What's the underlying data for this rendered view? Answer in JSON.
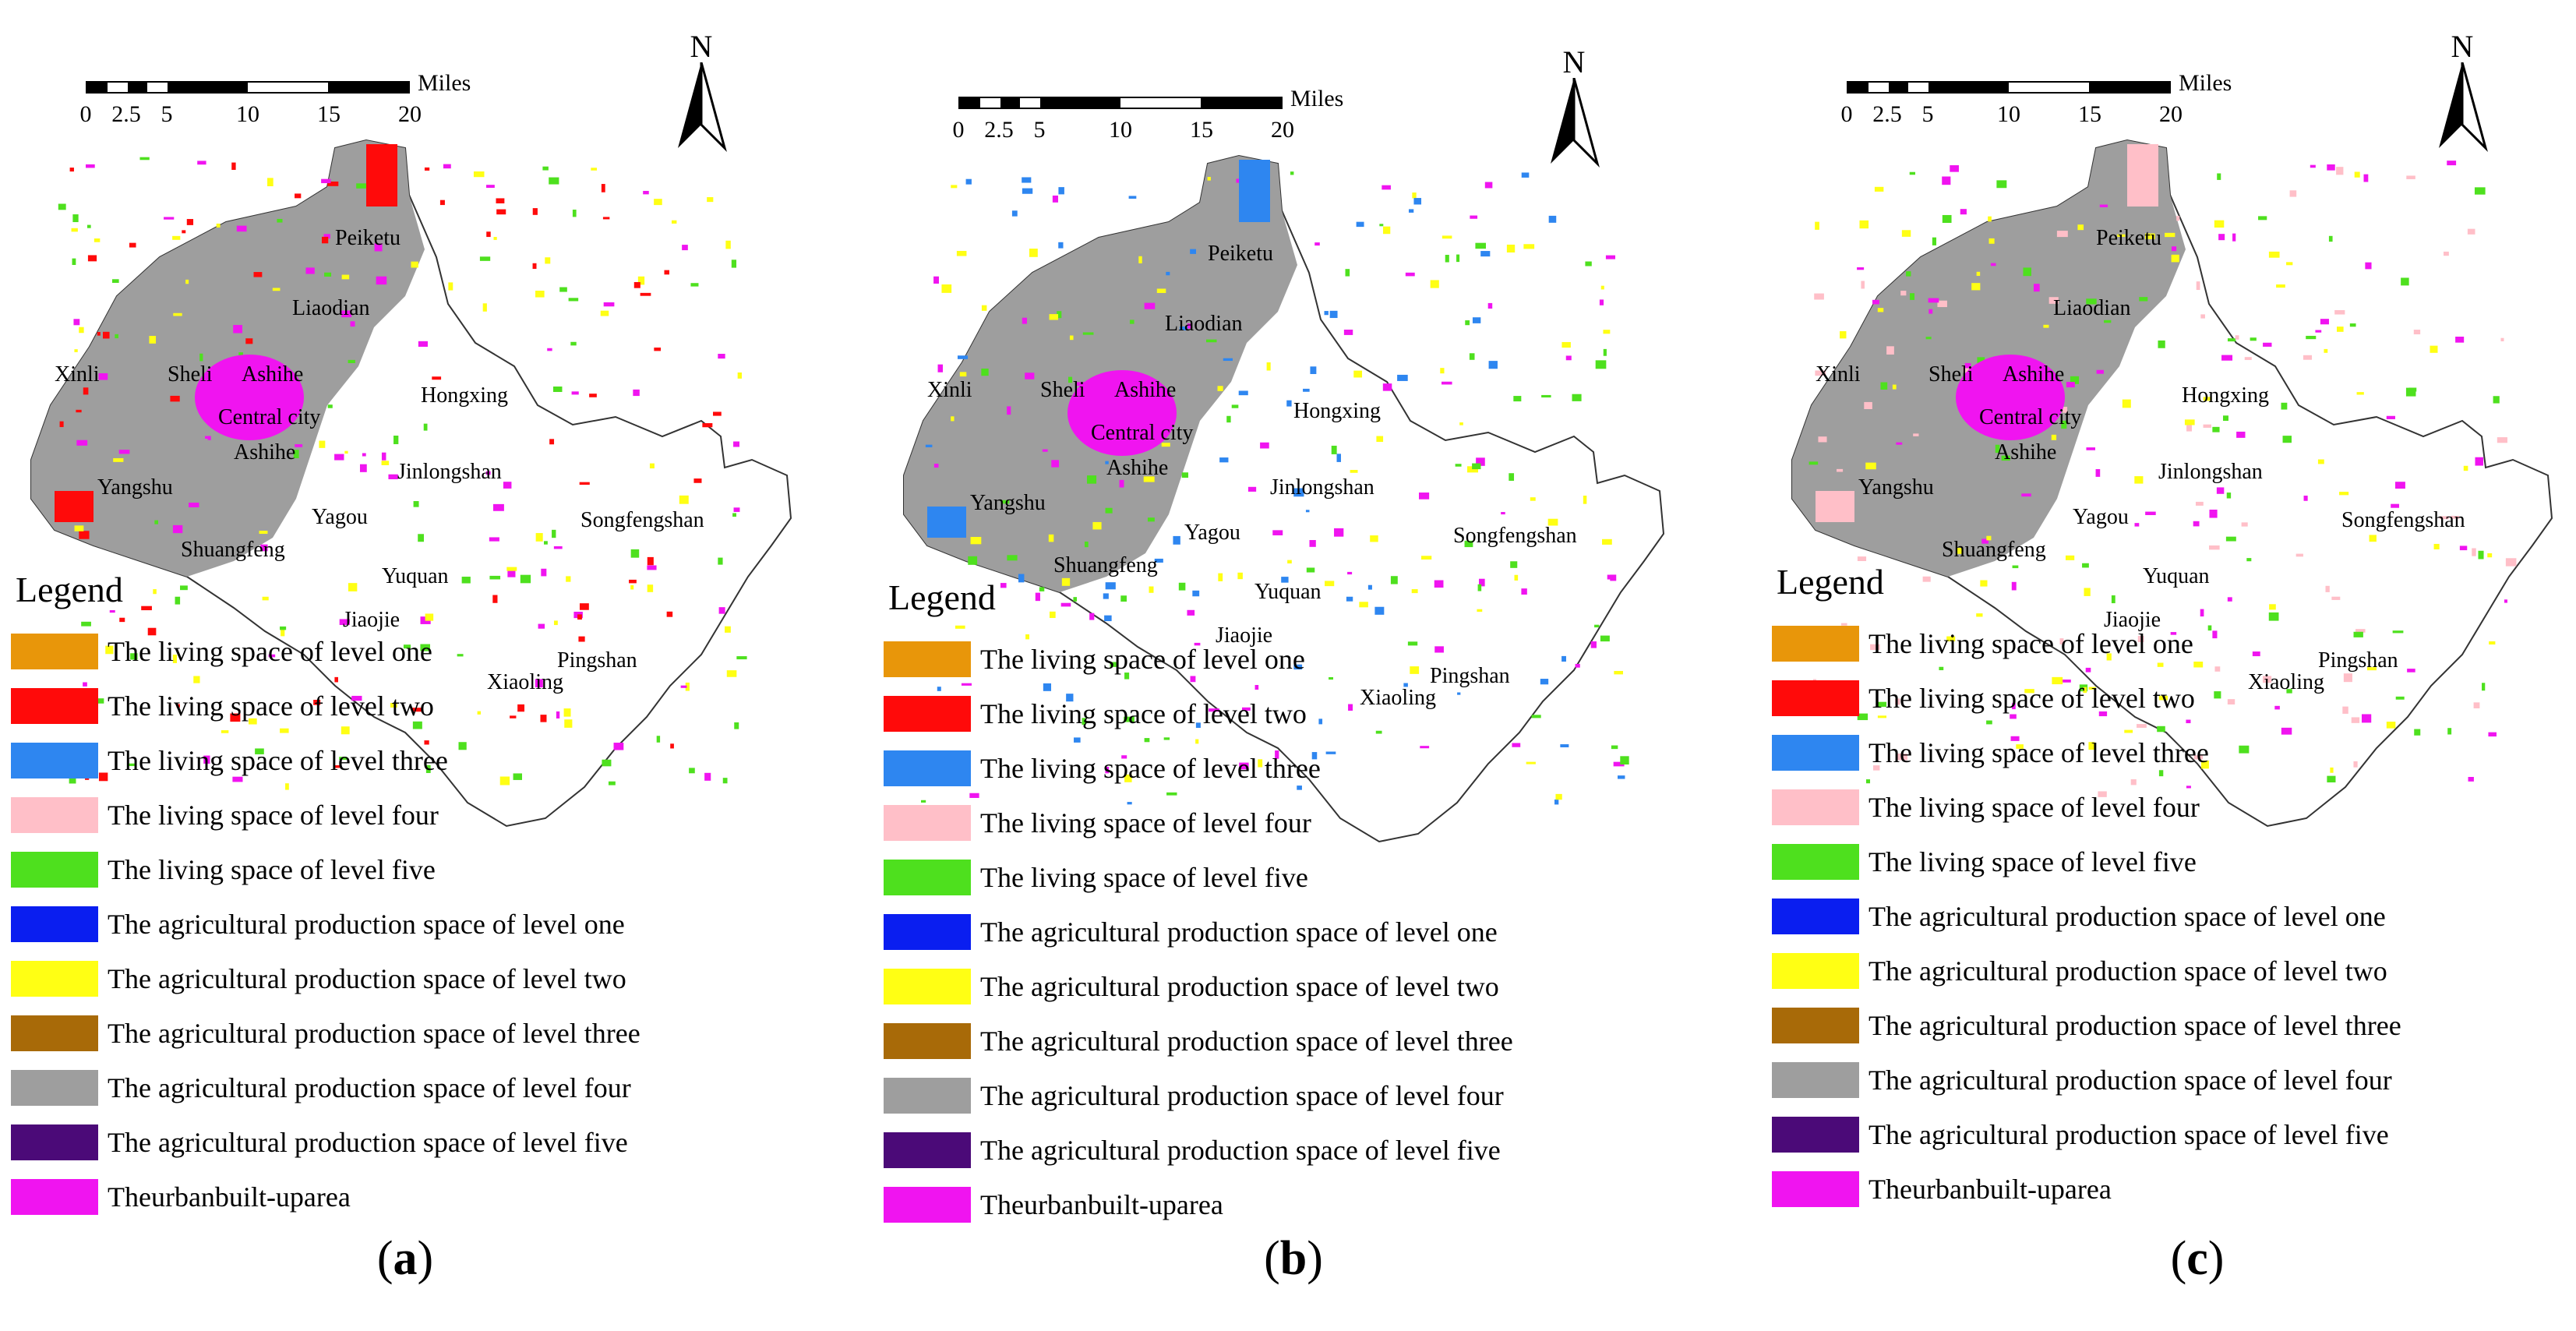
{
  "scale_bar": {
    "unit": "Miles",
    "ticks": [
      "0",
      "2.5",
      "5",
      "10",
      "15",
      "20"
    ]
  },
  "north_label": "N",
  "legend": {
    "title": "Legend",
    "items": [
      {
        "label": "The living space of level one",
        "color": "#E8960A"
      },
      {
        "label": "The living space of level two",
        "color": "#FF0A0A"
      },
      {
        "label": "The living space of level three",
        "color": "#2E86F0"
      },
      {
        "label": "The living space of level four",
        "color": "#FFBFC8"
      },
      {
        "label": "The living space of level five",
        "color": "#4EE01E"
      },
      {
        "label": "The agricultural production space of level one",
        "color": "#0A1EF0"
      },
      {
        "label": "The agricultural production space of level two",
        "color": "#FFFF14"
      },
      {
        "label": "The agricultural production space of level three",
        "color": "#A86A08"
      },
      {
        "label": "The agricultural production space of level four",
        "color": "#9E9E9E"
      },
      {
        "label": "The agricultural production space of level five",
        "color": "#4B0A78"
      },
      {
        "label": "Theurbanbuilt-uparea",
        "color": "#F014F0"
      }
    ]
  },
  "place_names": [
    "Peiketu",
    "Liaodian",
    "Xinli",
    "Sheli",
    "Ashihe",
    "Central city",
    "Ashihe",
    "Hongxing",
    "Jinlongshan",
    "Yangshu",
    "Yagou",
    "Songfengshan",
    "Shuangfeng",
    "Yuquan",
    "Jiaojie",
    "Xiaoling",
    "Pingshan"
  ],
  "panels": [
    {
      "label": "a",
      "region_colors": [
        "#FF0A0A",
        "#F014F0",
        "#FFFF14",
        "#4EE01E"
      ]
    },
    {
      "label": "b",
      "region_colors": [
        "#2E86F0",
        "#F014F0",
        "#FFFF14",
        "#4EE01E"
      ]
    },
    {
      "label": "c",
      "region_colors": [
        "#FFBFC8",
        "#F014F0",
        "#FFFF14",
        "#4EE01E"
      ]
    }
  ]
}
